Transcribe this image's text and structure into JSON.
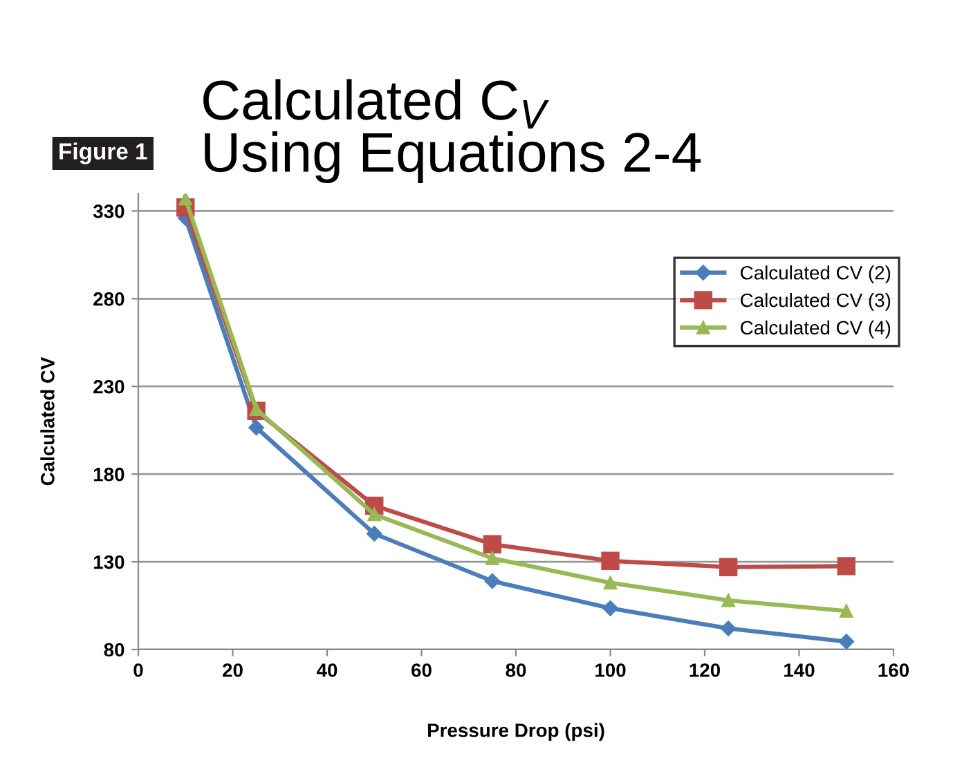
{
  "chart_data": {
    "type": "line",
    "title": "Calculated C$_{V}$\nUsing Equations 2-4",
    "annotations": [
      "Figure 1"
    ],
    "xlabel": "Pressure Drop (psi)",
    "ylabel": "Calculated CV",
    "x": [
      10,
      25,
      50,
      75,
      100,
      125,
      150
    ],
    "series": [
      {
        "name": "Calculated CV (2)",
        "color": "#4a7ebb",
        "marker": "diamond",
        "values": [
          326,
          206.5,
          146,
          119,
          103.5,
          92,
          84.5
        ]
      },
      {
        "name": "Calculated CV (3)",
        "color": "#be4b48",
        "marker": "square",
        "values": [
          332,
          216,
          162,
          140,
          130.5,
          127,
          127.5
        ]
      },
      {
        "name": "Calculated CV (4)",
        "color": "#98b954",
        "marker": "triangle",
        "values": [
          337,
          217,
          157,
          132,
          118,
          108,
          102
        ]
      }
    ],
    "xlim": [
      0,
      160
    ],
    "xticks": [
      0,
      20,
      40,
      60,
      80,
      100,
      120,
      140,
      160
    ],
    "ylim": [
      80,
      340
    ],
    "yticks": [
      80,
      130,
      180,
      230,
      280,
      330
    ],
    "grid": "y",
    "legend": "top right",
    "line_style": "solid"
  }
}
